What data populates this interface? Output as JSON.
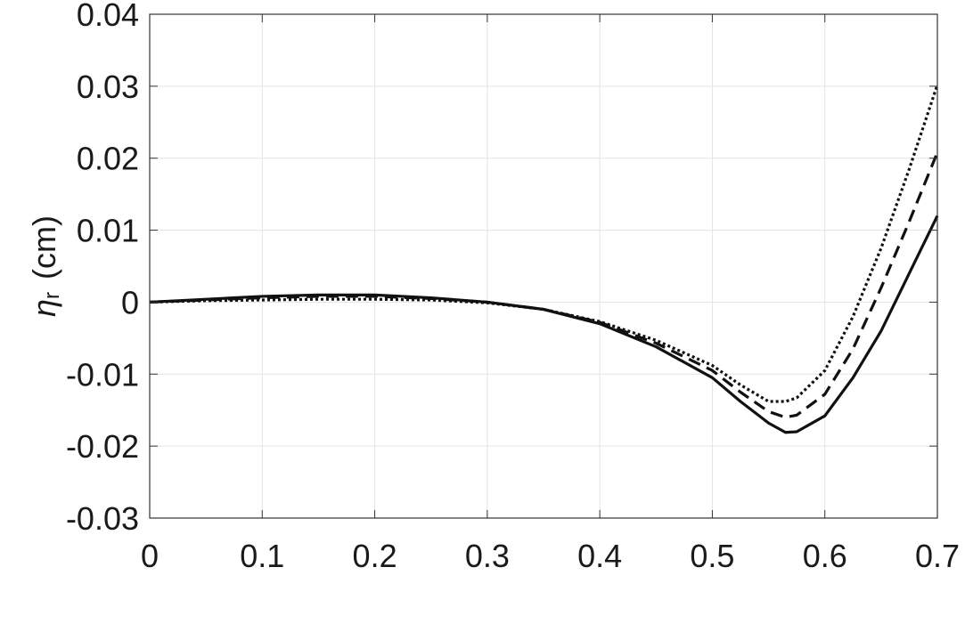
{
  "chart_data": {
    "type": "line",
    "ylabel": {
      "symbol": "η",
      "subscript": "r",
      "unit": "(cm)"
    },
    "x": [
      0,
      0.05,
      0.1,
      0.15,
      0.2,
      0.25,
      0.3,
      0.35,
      0.4,
      0.45,
      0.5,
      0.525,
      0.55,
      0.565,
      0.575,
      0.6,
      0.625,
      0.65,
      0.675,
      0.7
    ],
    "series": [
      {
        "color": "#111111",
        "dash": "solid",
        "values": [
          0,
          0.0004,
          0.0008,
          0.001,
          0.001,
          0.0006,
          0,
          -0.001,
          -0.003,
          -0.0062,
          -0.0105,
          -0.0138,
          -0.0168,
          -0.0181,
          -0.018,
          -0.0158,
          -0.0105,
          -0.004,
          0.004,
          0.012
        ]
      },
      {
        "color": "#111111",
        "dash": "dashed",
        "values": [
          0,
          0.0003,
          0.0006,
          0.0008,
          0.0008,
          0.0005,
          0,
          -0.001,
          -0.0028,
          -0.0057,
          -0.0095,
          -0.0125,
          -0.0152,
          -0.016,
          -0.0157,
          -0.0128,
          -0.0065,
          0.002,
          0.0112,
          0.0208
        ]
      },
      {
        "color": "#111111",
        "dash": "dotted",
        "values": [
          0,
          0.0002,
          0.0003,
          0.0004,
          0.0004,
          0.0003,
          -0.0001,
          -0.001,
          -0.0027,
          -0.0053,
          -0.0088,
          -0.0115,
          -0.0138,
          -0.0138,
          -0.0133,
          -0.0095,
          -0.002,
          0.0075,
          0.0185,
          0.0302
        ]
      }
    ],
    "xlim": [
      0,
      0.7
    ],
    "xticks": [
      0,
      0.1,
      0.2,
      0.3,
      0.4,
      0.5,
      0.6,
      0.7
    ],
    "ylim": [
      -0.03,
      0.04
    ],
    "yticks": [
      -0.03,
      -0.02,
      -0.01,
      0,
      0.01,
      0.02,
      0.03,
      0.04
    ],
    "grid": true
  }
}
